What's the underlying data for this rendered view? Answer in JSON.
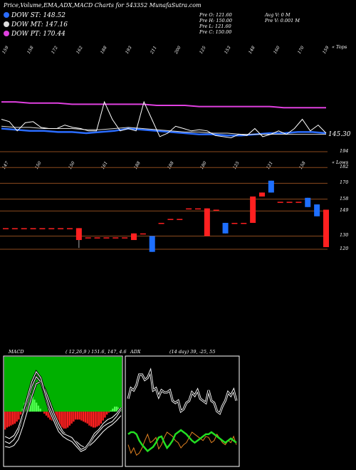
{
  "header": {
    "title": "Price,Volume,EMA,ADX,MACD Charts for 543352",
    "site": "MunafaSutra.com"
  },
  "legend": [
    {
      "label": "DOW ST: 148.52",
      "color": "#2a6cff"
    },
    {
      "label": "DOW MT: 147.16",
      "color": "#dddddd"
    },
    {
      "label": "DOW PT: 170.44",
      "color": "#e040e0"
    }
  ],
  "stats": {
    "open": "Pre   O: 121.60",
    "high": "Pre   H: 150.00",
    "low": "Pre   L: 121.60",
    "close": "Pre   C: 150.00",
    "avg_vol": "Avg V: 0   M",
    "pre_vol": "Pre   V: 0.001 M"
  },
  "top_ticks": [
    "159",
    "158",
    "172",
    "162",
    "188",
    "193",
    "211",
    "200",
    "125",
    "153",
    "148",
    "160",
    "170",
    "159"
  ],
  "top_right_label": "« Tops",
  "mid_ticks": [
    "147",
    "150",
    "150",
    "161",
    "188",
    "188",
    "180",
    "125",
    "121",
    "158"
  ],
  "mid_right_label": "« Lows",
  "last_price_label": "145.30",
  "price_axis_labels": [
    "194",
    "182",
    "170",
    "158",
    "149",
    "130",
    "120"
  ],
  "macd_panel": {
    "title": "MACD",
    "params": "( 12,26,9 ) 151.6,  147,  4.6"
  },
  "adx_panel": {
    "title": "ADX",
    "params": "(14  day) 39,  -25,  55"
  },
  "colors": {
    "ema_short": "#2a6cff",
    "ema_mid": "#dddddd",
    "ema_long": "#e040e0",
    "candle_up": "#ff2020",
    "candle_down": "#1e6fff",
    "grid_brown": "#8b4a1e",
    "macd_green_bg": "#00b000",
    "adx_green": "#22dd22",
    "adx_orange": "#e08020"
  },
  "chart_data": [
    {
      "type": "line",
      "name_hint": "price-ema",
      "series": [
        {
          "name": "DOW ST",
          "values": [
            152,
            151,
            150,
            150,
            149,
            149,
            148,
            149,
            150,
            152,
            151,
            150,
            149,
            148,
            147,
            147,
            146,
            146,
            147,
            148,
            148,
            149,
            149,
            148
          ]
        },
        {
          "name": "DOW MT",
          "values": [
            154,
            153,
            153,
            152,
            152,
            152,
            151,
            151,
            152,
            153,
            152,
            151,
            150,
            149,
            149,
            148,
            148,
            147,
            147,
            147,
            147,
            147,
            147,
            147
          ]
        },
        {
          "name": "DOW PT",
          "values": [
            175,
            175,
            174,
            174,
            174,
            173,
            173,
            173,
            173,
            173,
            173,
            172,
            172,
            172,
            171,
            171,
            171,
            171,
            171,
            171,
            170,
            170,
            170,
            170
          ]
        }
      ]
    },
    {
      "type": "bar",
      "name_hint": "price-candles",
      "ylim": [
        120,
        194
      ],
      "values": [
        {
          "o": 136,
          "h": 136,
          "l": 136,
          "c": 136
        },
        {
          "o": 136,
          "h": 136,
          "l": 136,
          "c": 136
        },
        {
          "o": 136,
          "h": 136,
          "l": 136,
          "c": 136
        },
        {
          "o": 136,
          "h": 136,
          "l": 136,
          "c": 136
        },
        {
          "o": 136,
          "h": 136,
          "l": 136,
          "c": 136
        },
        {
          "o": 136,
          "h": 136,
          "l": 136,
          "c": 136
        },
        {
          "o": 136,
          "h": 136,
          "l": 136,
          "c": 136
        },
        {
          "o": 136,
          "h": 136,
          "l": 136,
          "c": 136
        },
        {
          "o": 127,
          "h": 136,
          "l": 121,
          "c": 136
        },
        {
          "o": 129,
          "h": 129,
          "l": 129,
          "c": 129
        },
        {
          "o": 129,
          "h": 129,
          "l": 129,
          "c": 129
        },
        {
          "o": 129,
          "h": 129,
          "l": 129,
          "c": 129
        },
        {
          "o": 129,
          "h": 129,
          "l": 129,
          "c": 129
        },
        {
          "o": 129,
          "h": 129,
          "l": 129,
          "c": 129
        },
        {
          "o": 127,
          "h": 132,
          "l": 127,
          "c": 132
        },
        {
          "o": 132,
          "h": 132,
          "l": 132,
          "c": 132
        },
        {
          "o": 130,
          "h": 130,
          "l": 118,
          "c": 118
        },
        {
          "o": 140,
          "h": 140,
          "l": 140,
          "c": 140
        },
        {
          "o": 143,
          "h": 143,
          "l": 143,
          "c": 143
        },
        {
          "o": 143,
          "h": 143,
          "l": 143,
          "c": 143
        },
        {
          "o": 151,
          "h": 151,
          "l": 151,
          "c": 151
        },
        {
          "o": 151,
          "h": 151,
          "l": 151,
          "c": 151
        },
        {
          "o": 130,
          "h": 151,
          "l": 130,
          "c": 151
        },
        {
          "o": 150,
          "h": 150,
          "l": 150,
          "c": 150
        },
        {
          "o": 140,
          "h": 140,
          "l": 132,
          "c": 132
        },
        {
          "o": 140,
          "h": 140,
          "l": 140,
          "c": 140
        },
        {
          "o": 140,
          "h": 140,
          "l": 140,
          "c": 140
        },
        {
          "o": 140,
          "h": 160,
          "l": 144,
          "c": 160
        },
        {
          "o": 160,
          "h": 163,
          "l": 160,
          "c": 163
        },
        {
          "o": 172,
          "h": 172,
          "l": 163,
          "c": 163
        },
        {
          "o": 156,
          "h": 156,
          "l": 156,
          "c": 156
        },
        {
          "o": 156,
          "h": 156,
          "l": 156,
          "c": 156
        },
        {
          "o": 156,
          "h": 156,
          "l": 156,
          "c": 156
        },
        {
          "o": 159,
          "h": 159,
          "l": 152,
          "c": 152
        },
        {
          "o": 154,
          "h": 154,
          "l": 145,
          "c": 145
        },
        {
          "o": 121.6,
          "h": 150,
          "l": 121.6,
          "c": 150
        }
      ]
    },
    {
      "type": "bar",
      "name_hint": "macd-histogram",
      "values": [
        -18,
        -16,
        -15,
        -14,
        -13,
        -12,
        -10,
        -8,
        -3,
        3,
        9,
        14,
        17,
        17,
        15,
        12,
        9,
        6,
        3,
        0,
        -2,
        -4,
        -6,
        -8,
        -9,
        -10,
        -11,
        -12,
        -14,
        -16,
        -17,
        -17,
        -16,
        -14,
        -12,
        -10,
        -8,
        -8,
        -8,
        -9,
        -10,
        -11,
        -12,
        -14,
        -15,
        -16,
        -16,
        -15,
        -14,
        -12,
        -9,
        -6,
        -3,
        -1,
        1,
        3,
        5,
        5,
        4,
        4
      ]
    },
    {
      "type": "line",
      "name_hint": "adx-lines",
      "series": [
        {
          "name": "+DI",
          "values": [
            62,
            72,
            70,
            75,
            85,
            85,
            80,
            82,
            88,
            70,
            72,
            64,
            70,
            68,
            68,
            70,
            60,
            58,
            60,
            50,
            52,
            58,
            60,
            68,
            65,
            70,
            62,
            60,
            58,
            70,
            60,
            58,
            50,
            48,
            55,
            60,
            68,
            65,
            70,
            60
          ]
        },
        {
          "name": "-DI",
          "values": [
            18,
            10,
            15,
            8,
            10,
            15,
            22,
            28,
            20,
            22,
            25,
            14,
            18,
            25,
            30,
            28,
            26,
            22,
            20,
            15,
            18,
            20,
            25,
            30,
            28,
            26,
            24,
            22,
            26,
            25,
            20,
            22,
            28,
            24,
            20,
            18,
            22,
            20,
            26,
            18
          ]
        },
        {
          "name": "ADX",
          "values": [
            28,
            30,
            30,
            28,
            22,
            18,
            15,
            12,
            14,
            16,
            20,
            25,
            26,
            20,
            15,
            18,
            22,
            28,
            30,
            32,
            30,
            28,
            25,
            22,
            20,
            22,
            24,
            26,
            28,
            28,
            30,
            28,
            26,
            24,
            22,
            20,
            22,
            24,
            22,
            20
          ]
        }
      ]
    }
  ]
}
